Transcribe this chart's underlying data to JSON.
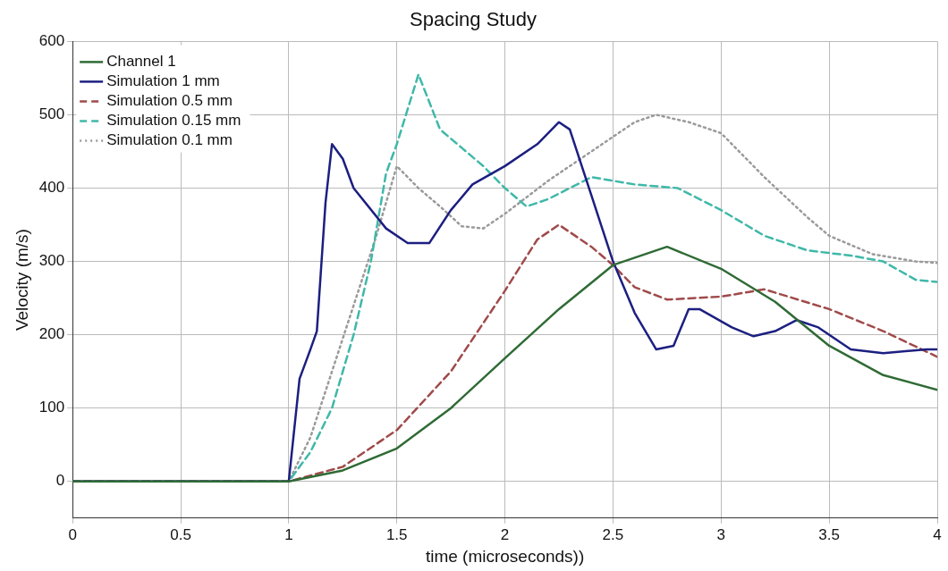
{
  "chart_data": {
    "type": "line",
    "title": "Spacing Study",
    "xlabel": "time (microseconds))",
    "ylabel": "Velocity (m/s)",
    "xlim": [
      0,
      4
    ],
    "xticks": [
      0,
      0.5,
      1,
      1.5,
      2,
      2.5,
      3,
      3.5,
      4
    ],
    "ylim": [
      -50,
      600
    ],
    "yticks": [
      0,
      100,
      200,
      300,
      400,
      500,
      600
    ],
    "grid": true,
    "legend": "top left",
    "marker": "none",
    "series": [
      {
        "name": "Channel 1",
        "color": "#2f6b35",
        "line_style": "solid",
        "x": [
          0,
          0.5,
          1,
          1.25,
          1.5,
          1.75,
          2,
          2.25,
          2.5,
          2.75,
          3,
          3.25,
          3.5,
          3.75,
          4
        ],
        "values": [
          0,
          0,
          0,
          15,
          45,
          100,
          168,
          235,
          295,
          320,
          290,
          245,
          185,
          145,
          125
        ]
      },
      {
        "name": "Simulation 1 mm",
        "color": "#1c1f80",
        "line_style": "solid",
        "x": [
          0,
          0.5,
          1,
          1.05,
          1.1,
          1.13,
          1.17,
          1.2,
          1.25,
          1.3,
          1.45,
          1.55,
          1.65,
          1.75,
          1.85,
          2,
          2.15,
          2.25,
          2.3,
          2.4,
          2.5,
          2.6,
          2.7,
          2.78,
          2.85,
          2.9,
          3.05,
          3.15,
          3.25,
          3.35,
          3.45,
          3.6,
          3.75,
          3.95,
          4
        ],
        "values": [
          0,
          0,
          0,
          140,
          180,
          205,
          380,
          460,
          440,
          400,
          345,
          325,
          325,
          370,
          405,
          430,
          460,
          490,
          480,
          390,
          300,
          230,
          180,
          185,
          235,
          235,
          210,
          198,
          205,
          220,
          210,
          180,
          175,
          180,
          180
        ]
      },
      {
        "name": "Simulation 0.5 mm",
        "color": "#a04a4a",
        "line_style": "dashed",
        "x": [
          0,
          0.5,
          1,
          1.25,
          1.5,
          1.75,
          2,
          2.15,
          2.25,
          2.4,
          2.5,
          2.6,
          2.75,
          3,
          3.2,
          3.5,
          3.75,
          4
        ],
        "values": [
          0,
          0,
          0,
          20,
          70,
          150,
          260,
          330,
          350,
          320,
          295,
          265,
          248,
          252,
          262,
          235,
          205,
          170
        ]
      },
      {
        "name": "Simulation 0.15 mm",
        "color": "#3fb8a8",
        "line_style": "dashed",
        "x": [
          0,
          0.5,
          1,
          1.1,
          1.2,
          1.3,
          1.38,
          1.45,
          1.5,
          1.6,
          1.7,
          1.8,
          1.9,
          2,
          2.1,
          2.2,
          2.4,
          2.6,
          2.8,
          3,
          3.2,
          3.4,
          3.6,
          3.75,
          3.9,
          4
        ],
        "values": [
          0,
          0,
          0,
          40,
          100,
          200,
          300,
          420,
          460,
          555,
          480,
          455,
          430,
          400,
          375,
          385,
          415,
          405,
          400,
          370,
          335,
          315,
          308,
          300,
          275,
          272
        ]
      },
      {
        "name": "Simulation 0.1 mm",
        "color": "#9a9a9a",
        "line_style": "dotted",
        "x": [
          0,
          0.5,
          1,
          1.1,
          1.2,
          1.3,
          1.4,
          1.5,
          1.6,
          1.7,
          1.8,
          1.9,
          2,
          2.2,
          2.4,
          2.6,
          2.7,
          2.85,
          3,
          3.2,
          3.4,
          3.5,
          3.7,
          3.9,
          4
        ],
        "values": [
          0,
          0,
          0,
          60,
          150,
          240,
          330,
          430,
          400,
          375,
          348,
          345,
          365,
          410,
          450,
          490,
          500,
          490,
          475,
          415,
          360,
          335,
          310,
          300,
          298
        ]
      }
    ]
  }
}
